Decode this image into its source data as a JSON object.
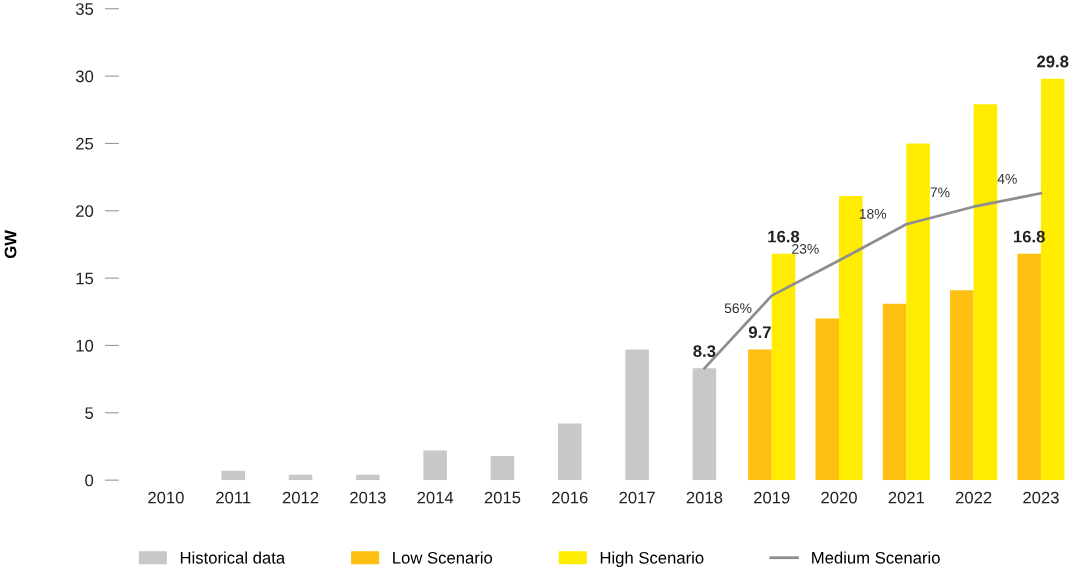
{
  "chart_data": {
    "type": "bar",
    "ylabel": "GW",
    "categories": [
      "2010",
      "2011",
      "2012",
      "2013",
      "2014",
      "2015",
      "2016",
      "2017",
      "2018",
      "2019",
      "2020",
      "2021",
      "2022",
      "2023"
    ],
    "series": [
      {
        "name": "Historical data",
        "color": "#c8c8ca",
        "values": [
          0,
          0.7,
          0.4,
          0.4,
          2.2,
          1.8,
          4.2,
          9.7,
          8.3,
          null,
          null,
          null,
          null,
          null
        ],
        "value_labels": [
          null,
          null,
          null,
          null,
          null,
          null,
          null,
          null,
          "8.3",
          null,
          null,
          null,
          null,
          null
        ]
      },
      {
        "name": "Low Scenario",
        "color": "#fdc010",
        "values": [
          null,
          null,
          null,
          null,
          null,
          null,
          null,
          null,
          null,
          9.7,
          12.0,
          13.1,
          14.1,
          16.8
        ],
        "value_labels": [
          null,
          null,
          null,
          null,
          null,
          null,
          null,
          null,
          null,
          "9.7",
          null,
          null,
          null,
          "16.8"
        ]
      },
      {
        "name": "High Scenario",
        "color": "#ffec00",
        "values": [
          null,
          null,
          null,
          null,
          null,
          null,
          null,
          null,
          null,
          16.8,
          21.1,
          25.0,
          27.9,
          29.8
        ],
        "value_labels": [
          null,
          null,
          null,
          null,
          null,
          null,
          null,
          null,
          null,
          "16.8",
          null,
          null,
          null,
          "29.8"
        ]
      },
      {
        "name": "Medium Scenario",
        "type": "line",
        "color": "#8e8e90",
        "values": [
          null,
          null,
          null,
          null,
          null,
          null,
          null,
          null,
          8.3,
          13.7,
          16.3,
          19.0,
          20.3,
          21.3
        ]
      }
    ],
    "annotations": [
      {
        "text": "56%",
        "x": "2019",
        "y": 12.2
      },
      {
        "text": "23%",
        "x": "2020",
        "y": 16.6
      },
      {
        "text": "18%",
        "x": "2021",
        "y": 19.2
      },
      {
        "text": "7%",
        "x": "2022",
        "y": 20.8
      },
      {
        "text": "4%",
        "x": "2023",
        "y": 21.8
      }
    ],
    "ylim": [
      0,
      35
    ],
    "yticks": [
      0,
      5,
      10,
      15,
      20,
      25,
      30,
      35
    ],
    "grid": false,
    "legend": "bottom"
  }
}
